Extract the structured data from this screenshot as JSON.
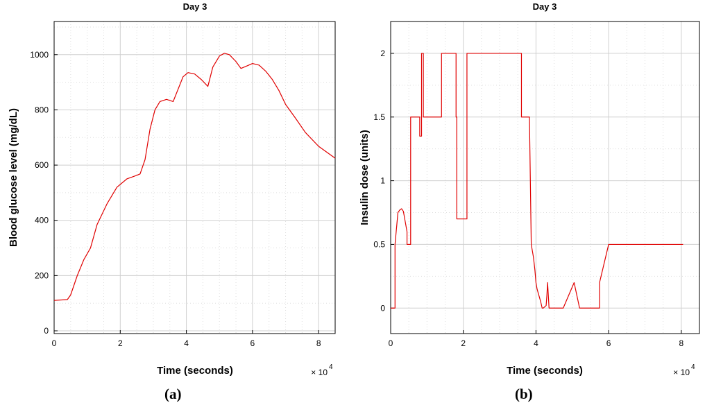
{
  "chart_data": [
    {
      "type": "line",
      "panel_label": "(a)",
      "title": "Day 3",
      "xlabel": "Time (seconds)",
      "ylabel": "Blood glucose level (mg/dL)",
      "x_multiplier": "× 10",
      "x_multiplier_exp": "4",
      "xlim": [
        0,
        8.5
      ],
      "ylim": [
        -10,
        1120
      ],
      "xticks": [
        0,
        2,
        4,
        6,
        8
      ],
      "yticks": [
        0,
        200,
        400,
        600,
        800,
        1000
      ],
      "xtick_labels": [
        "0",
        "2",
        "4",
        "6",
        "8"
      ],
      "ytick_labels": [
        "0",
        "200",
        "400",
        "600",
        "800",
        "1000"
      ],
      "grid": true,
      "line_color": "#e00000",
      "series": [
        {
          "x": [
            0,
            0.4,
            0.5,
            0.7,
            0.9,
            1.1,
            1.3,
            1.6,
            1.9,
            2.2,
            2.5,
            2.6,
            2.75,
            2.9,
            3.05,
            3.2,
            3.4,
            3.6,
            3.75,
            3.9,
            4.05,
            4.25,
            4.45,
            4.65,
            4.8,
            5.0,
            5.15,
            5.3,
            5.5,
            5.65,
            5.85,
            6.0,
            6.2,
            6.4,
            6.6,
            6.8,
            7.0,
            7.3,
            7.6,
            8.0,
            8.5
          ],
          "y": [
            110,
            113,
            130,
            200,
            258,
            300,
            385,
            460,
            520,
            550,
            563,
            568,
            620,
            730,
            800,
            830,
            838,
            830,
            875,
            920,
            935,
            930,
            910,
            885,
            955,
            995,
            1005,
            1000,
            975,
            950,
            960,
            968,
            962,
            940,
            910,
            870,
            820,
            770,
            718,
            668,
            625
          ]
        }
      ]
    },
    {
      "type": "line",
      "panel_label": "(b)",
      "title": "Day 3",
      "xlabel": "Time (seconds)",
      "ylabel": "Insulin dose (units)",
      "x_multiplier": "× 10",
      "x_multiplier_exp": "4",
      "xlim": [
        0,
        8.5
      ],
      "ylim": [
        -0.2,
        2.25
      ],
      "xticks": [
        0,
        2,
        4,
        6,
        8
      ],
      "yticks": [
        0,
        0.5,
        1,
        1.5,
        2
      ],
      "xtick_labels": [
        "0",
        "2",
        "4",
        "6",
        "8"
      ],
      "ytick_labels": [
        "0",
        "0.5",
        "1",
        "1.5",
        "2"
      ],
      "grid": true,
      "line_color": "#e00000",
      "series": [
        {
          "x": [
            0,
            0.12,
            0.12,
            0.2,
            0.25,
            0.3,
            0.35,
            0.45,
            0.45,
            0.55,
            0.55,
            0.8,
            0.8,
            0.85,
            0.85,
            0.9,
            0.9,
            1.4,
            1.4,
            1.8,
            1.8,
            1.82,
            1.82,
            2.1,
            2.1,
            3.6,
            3.6,
            3.78,
            3.82,
            3.87,
            3.93,
            3.97,
            4.0,
            4.03,
            4.08,
            4.13,
            4.17,
            4.2,
            4.28,
            4.3,
            4.32,
            4.34,
            4.36,
            4.45,
            4.5,
            4.6,
            4.65,
            4.75,
            5.05,
            5.2,
            5.5,
            5.75,
            5.75,
            6.0,
            6.6,
            6.65,
            6.9,
            7.0,
            7.1,
            7.2,
            7.35,
            7.4,
            7.52,
            7.57,
            7.7,
            7.75,
            7.9,
            8.05
          ],
          "y": [
            0,
            0,
            0.5,
            0.75,
            0.77,
            0.78,
            0.76,
            0.6,
            0.5,
            0.5,
            1.5,
            1.5,
            1.35,
            1.35,
            2,
            2,
            1.5,
            1.5,
            2,
            2,
            1.5,
            1.5,
            0.7,
            0.7,
            2,
            2,
            1.5,
            1.5,
            1.5,
            0.5,
            0.4,
            0.3,
            0.2,
            0.15,
            0.1,
            0.05,
            0,
            0,
            0.02,
            0.1,
            0.2,
            0.1,
            0,
            0,
            0,
            0,
            0,
            0,
            0.2,
            0,
            0,
            0,
            0.2,
            0.5,
            0.5,
            0.5,
            0.5,
            0.5,
            0.5,
            0.5,
            0.5,
            0.5,
            0.5,
            0.5,
            0.5,
            0.5,
            0.5,
            0.5
          ]
        }
      ]
    }
  ]
}
